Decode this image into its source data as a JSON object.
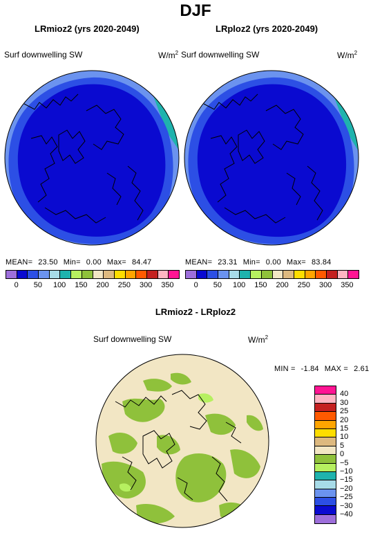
{
  "season": "DJF",
  "panels": [
    {
      "title": "LRmioz2 (yrs 2020-2049)",
      "variable": "Surf downwelling SW",
      "unit_base": "W/m",
      "unit_exp": "2",
      "stats": {
        "mean_label": "MEAN=",
        "mean": "23.50",
        "min_label": "Min=",
        "min": "0.00",
        "max_label": "Max=",
        "max": "84.47"
      }
    },
    {
      "title": "LRploz2 (yrs 2020-2049)",
      "variable": "Surf downwelling SW",
      "unit_base": "W/m",
      "unit_exp": "2",
      "stats": {
        "mean_label": "MEAN=",
        "mean": "23.31",
        "min_label": "Min=",
        "min": "0.00",
        "max_label": "Max=",
        "max": "83.84"
      }
    }
  ],
  "abs_colorbar": {
    "colors": [
      "#9d6fdb",
      "#0a0ad0",
      "#2c4fe5",
      "#6b93ef",
      "#a7dbe8",
      "#1fb3ad",
      "#b6f060",
      "#8fc13b",
      "#f2e6c4",
      "#ddb97f",
      "#fedd00",
      "#ffa500",
      "#ff5a00",
      "#c42020",
      "#ffb5c2",
      "#ff1493"
    ],
    "ticks": [
      "0",
      "50",
      "100",
      "150",
      "200",
      "250",
      "300",
      "350"
    ]
  },
  "diff": {
    "title": "LRmioz2 - LRploz2",
    "variable": "Surf downwelling SW",
    "unit_base": "W/m",
    "unit_exp": "2",
    "stats": {
      "min_label": "MIN =",
      "min": "-1.84",
      "max_label": "MAX =",
      "max": "2.61"
    }
  },
  "diff_colorbar": {
    "colors_top_to_bottom": [
      "#ff1493",
      "#ffb5c2",
      "#c42020",
      "#ff5a00",
      "#ffa500",
      "#fedd00",
      "#ddb97f",
      "#f2e6c4",
      "#8fc13b",
      "#b6f060",
      "#1fb3ad",
      "#a7dbe8",
      "#6b93ef",
      "#2c4fe5",
      "#0a0ad0",
      "#9d6fdb"
    ],
    "ticks_top_to_bottom": [
      "40",
      "30",
      "25",
      "20",
      "15",
      "10",
      "5",
      "0",
      "−5",
      "−10",
      "−15",
      "−20",
      "−25",
      "−30",
      "−40"
    ]
  },
  "map_colors": {
    "ocean_ring": "#6b93ef",
    "mid_ring": "#2c4fe5",
    "core": "#0a0ad0",
    "edge": "#1fb3ad",
    "diff_background": "#f2e6c4",
    "diff_patch": "#8fc13b",
    "diff_patch_light": "#b6f060"
  }
}
